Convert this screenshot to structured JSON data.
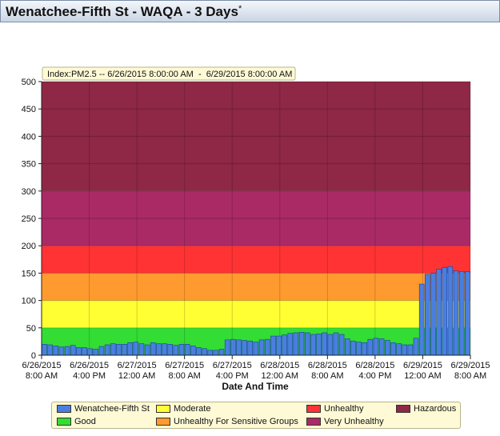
{
  "window": {
    "title": "Wenatchee-Fifth St - WAQA - 3 Days",
    "title_marker": "*"
  },
  "chart_data": {
    "type": "bar",
    "annotation": "Index:PM2.5 -- 6/26/2015 8:00:00 AM  -  6/29/2015 8:00:00 AM",
    "xlabel": "Date And Time",
    "ylabel": "",
    "ylim": [
      0,
      500
    ],
    "yticks": [
      0,
      50,
      100,
      150,
      200,
      250,
      300,
      350,
      400,
      450,
      500
    ],
    "xticks": [
      {
        "hours": 0,
        "date": "6/26/2015",
        "time": "8:00 AM"
      },
      {
        "hours": 8,
        "date": "6/26/2015",
        "time": "4:00 PM"
      },
      {
        "hours": 16,
        "date": "6/27/2015",
        "time": "12:00 AM"
      },
      {
        "hours": 24,
        "date": "6/27/2015",
        "time": "8:00 AM"
      },
      {
        "hours": 32,
        "date": "6/27/2015",
        "time": "4:00 PM"
      },
      {
        "hours": 40,
        "date": "6/28/2015",
        "time": "12:00 AM"
      },
      {
        "hours": 48,
        "date": "6/28/2015",
        "time": "8:00 AM"
      },
      {
        "hours": 56,
        "date": "6/28/2015",
        "time": "4:00 PM"
      },
      {
        "hours": 64,
        "date": "6/29/2015",
        "time": "12:00 AM"
      },
      {
        "hours": 72,
        "date": "6/29/2015",
        "time": "8:00 AM"
      }
    ],
    "grid": true,
    "bands": [
      {
        "name": "Good",
        "from": 0,
        "to": 50,
        "color": "#33dd33"
      },
      {
        "name": "Moderate",
        "from": 50,
        "to": 100,
        "color": "#ffff33"
      },
      {
        "name": "Unhealthy For Sensitive Groups",
        "from": 100,
        "to": 150,
        "color": "#ff9a2e"
      },
      {
        "name": "Unhealthy",
        "from": 150,
        "to": 200,
        "color": "#ff3333"
      },
      {
        "name": "Very Unhealthy",
        "from": 200,
        "to": 300,
        "color": "#aa2a66"
      },
      {
        "name": "Hazardous",
        "from": 300,
        "to": 500,
        "color": "#8e2846"
      }
    ],
    "series": [
      {
        "name": "Wenatchee-Fifth St",
        "color": "#4a7fe0",
        "values": [
          20,
          19,
          17,
          15,
          16,
          18,
          14,
          14,
          12,
          11,
          16,
          19,
          21,
          20,
          20,
          23,
          24,
          21,
          19,
          23,
          21,
          21,
          20,
          18,
          20,
          20,
          17,
          14,
          12,
          9,
          9,
          11,
          28,
          29,
          28,
          27,
          26,
          24,
          28,
          29,
          35,
          35,
          37,
          40,
          41,
          42,
          41,
          38,
          39,
          41,
          38,
          41,
          38,
          30,
          26,
          24,
          23,
          29,
          31,
          30,
          27,
          23,
          21,
          19,
          19,
          31,
          130,
          148,
          150,
          157,
          160,
          162,
          154,
          153,
          153
        ]
      }
    ]
  },
  "legend": {
    "items": [
      {
        "label": "Wenatchee-Fifth St",
        "color": "#4a7fe0"
      },
      {
        "label": "Moderate",
        "color": "#ffff33"
      },
      {
        "label": "Unhealthy",
        "color": "#ff3333"
      },
      {
        "label": "Hazardous",
        "color": "#8e2846"
      },
      {
        "label": "Good",
        "color": "#33dd33"
      },
      {
        "label": "Unhealthy For Sensitive Groups",
        "color": "#ff9a2e"
      },
      {
        "label": "Very Unhealthy",
        "color": "#aa2a66"
      }
    ]
  }
}
